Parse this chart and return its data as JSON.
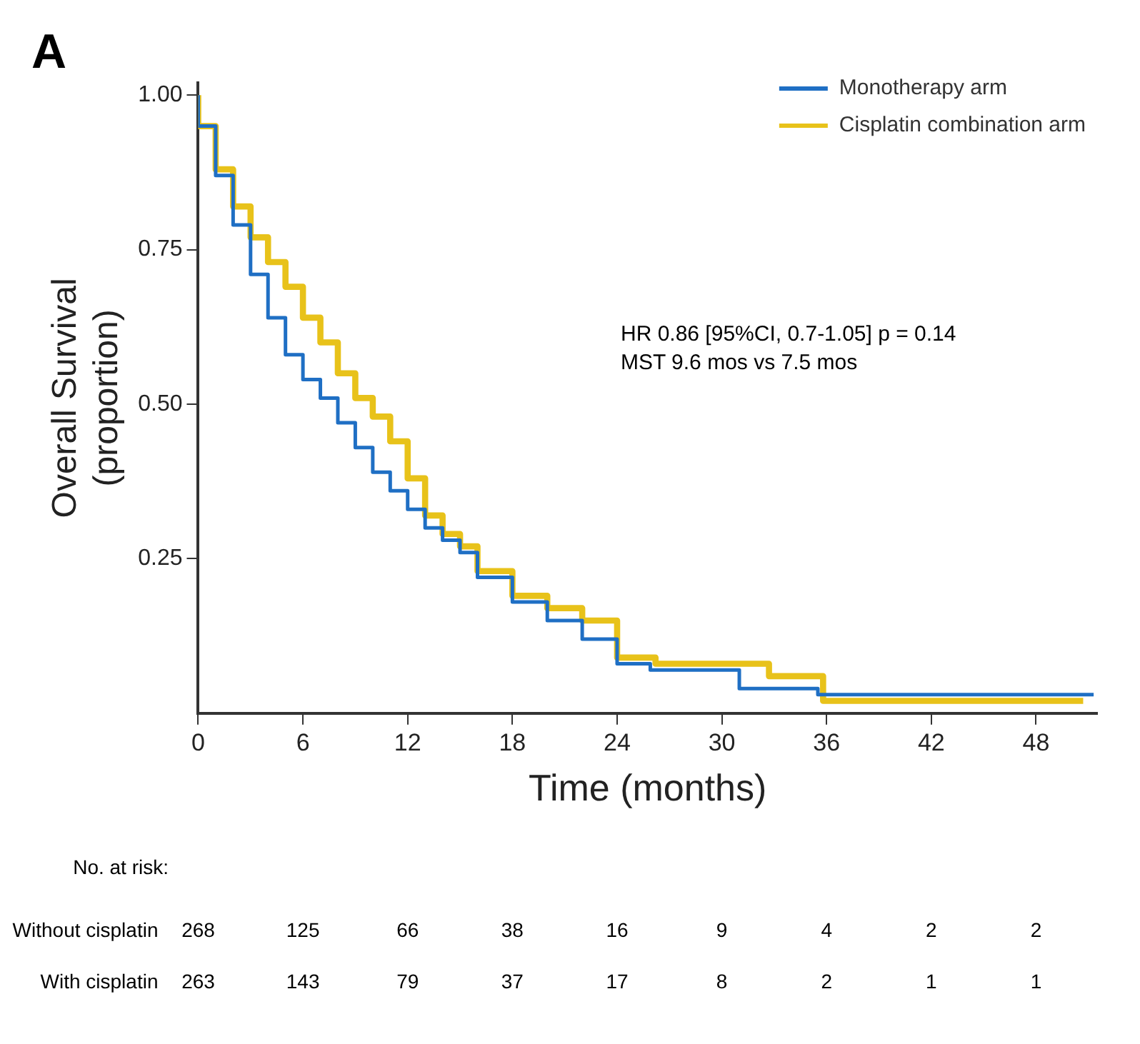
{
  "chart_data": {
    "type": "step",
    "title": "A",
    "xlabel": "Time (months)",
    "ylabel": "Overall Survival\n(proportion)",
    "series": [
      {
        "name": "Monotherapy arm",
        "color": "#1f6fc4",
        "x": [
          0,
          1,
          2,
          3,
          4,
          5,
          6,
          7,
          8,
          9,
          10,
          11,
          12,
          13,
          14,
          15,
          16,
          18,
          20,
          22,
          24,
          25.9,
          31,
          35.5,
          37.7,
          51.3
        ],
        "values": [
          1.0,
          0.95,
          0.87,
          0.79,
          0.71,
          0.64,
          0.58,
          0.54,
          0.51,
          0.47,
          0.43,
          0.39,
          0.36,
          0.33,
          0.3,
          0.28,
          0.26,
          0.22,
          0.18,
          0.15,
          0.12,
          0.08,
          0.07,
          0.04,
          0.03,
          0.03
        ]
      },
      {
        "name": "Cisplatin combination arm",
        "color": "#e8c21a",
        "x": [
          0,
          1,
          2,
          3,
          4,
          5,
          6,
          7,
          8,
          9,
          10,
          11,
          12,
          13,
          14,
          15,
          16,
          18,
          20,
          22,
          24,
          26.2,
          32.7,
          35.8,
          37.7,
          50.7
        ],
        "values": [
          1.0,
          0.95,
          0.88,
          0.82,
          0.77,
          0.73,
          0.69,
          0.64,
          0.6,
          0.55,
          0.51,
          0.48,
          0.44,
          0.38,
          0.32,
          0.29,
          0.27,
          0.23,
          0.19,
          0.17,
          0.15,
          0.09,
          0.08,
          0.06,
          0.02,
          0.02
        ]
      }
    ],
    "xlim": [
      0,
      51.5
    ],
    "xticks": [
      0,
      6,
      12,
      18,
      24,
      30,
      36,
      42,
      48
    ],
    "ylim": [
      0,
      1.02
    ],
    "yticks": [
      {
        "value": 0.25,
        "label": "0.25"
      },
      {
        "value": 0.5,
        "label": "0.50"
      },
      {
        "value": 0.75,
        "label": "0.75"
      },
      {
        "value": 1,
        "label": "1.00"
      }
    ],
    "grid": false,
    "legend": "top right",
    "marker": "none",
    "line_style": "solid",
    "annotations": [
      "HR 0.86 [95%CI, 0.7-1.05] p = 0.14",
      "MST 9.6 mos vs 7.5 mos",
      "No. at risk:",
      "Without cisplatin  268  125  66  38  16  9  4  2  2",
      "With cisplatin  263  143  79  37  17  8  2  1  1"
    ]
  }
}
